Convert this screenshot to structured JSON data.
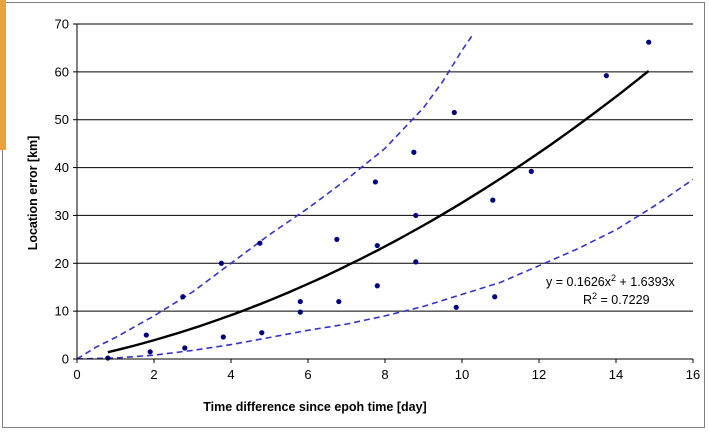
{
  "chart_data": {
    "type": "scatter",
    "xlabel": "Time difference since epoh time [day]",
    "ylabel": "Location error [km]",
    "xlim": [
      0,
      16
    ],
    "ylim": [
      0,
      70
    ],
    "x_ticks": [
      "0",
      "2",
      "4",
      "6",
      "8",
      "10",
      "12",
      "14",
      "16"
    ],
    "y_ticks": [
      "0",
      "10",
      "20",
      "30",
      "40",
      "50",
      "60",
      "70"
    ],
    "grid": "horizontal",
    "points": {
      "x": [
        0.8,
        1.8,
        1.9,
        2.75,
        2.8,
        3.75,
        3.8,
        4.75,
        4.8,
        5.8,
        5.8,
        6.75,
        6.8,
        7.75,
        7.8,
        7.8,
        8.75,
        8.8,
        8.8,
        9.8,
        9.85,
        10.8,
        10.85,
        11.8,
        13.75,
        14.85
      ],
      "y": [
        0.2,
        5,
        1.5,
        13,
        2.3,
        20,
        4.6,
        24.2,
        5.5,
        12,
        9.8,
        25,
        12,
        37,
        23.7,
        15.3,
        43.2,
        30,
        20.3,
        51.5,
        10.8,
        33.2,
        13,
        39.2,
        59.2,
        66.2
      ]
    },
    "trendline": {
      "type": "polynomial",
      "coefficients": [
        0.1626,
        1.6393
      ],
      "x_range": [
        0.8,
        14.85
      ],
      "equation": "y = 0.1626x",
      "equation_exp": "2",
      "equation_rest": " + 1.6393x",
      "r2_label": "R",
      "r2_exp": "2",
      "r2_rest": " = 0.7229"
    },
    "upper_bound": {
      "x": [
        0,
        0.5,
        1,
        2,
        3,
        4,
        5,
        6,
        7,
        8,
        9,
        9.5,
        10,
        10.3
      ],
      "y": [
        0,
        2.5,
        4.5,
        9,
        14,
        20,
        26,
        31.5,
        37.5,
        44,
        52.5,
        58,
        64.5,
        68
      ]
    },
    "lower_bound": {
      "x": [
        0,
        1,
        2,
        3,
        4,
        5,
        6,
        7,
        8,
        9,
        10,
        11,
        12,
        13,
        14,
        15,
        16
      ],
      "y": [
        0,
        0.2,
        0.8,
        1.8,
        3,
        4.5,
        6,
        7.3,
        9,
        11,
        13.5,
        16,
        19.5,
        23,
        27,
        32,
        37.5
      ]
    },
    "colors": {
      "points": "#000080",
      "trendline": "#000000",
      "bounds": "#3333cc",
      "grid": "#000000",
      "frame_accent": "#e8a33a"
    }
  }
}
